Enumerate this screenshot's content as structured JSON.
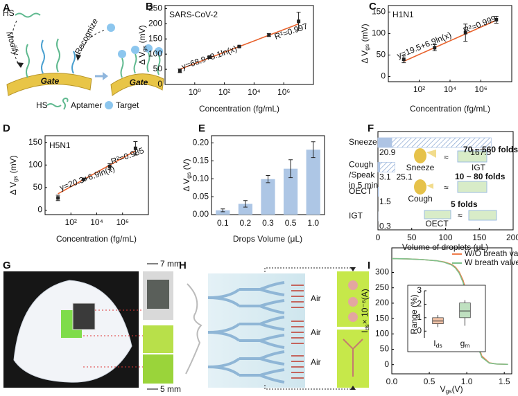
{
  "panel_labels": [
    "A",
    "B",
    "C",
    "D",
    "E",
    "F",
    "G",
    "H",
    "I"
  ],
  "panel_a": {
    "hs_top": "HS",
    "modify": "Modify",
    "recognize": "Recognize",
    "gate_left": "Gate",
    "gate_right": "Gate",
    "legend_hs": "HS",
    "legend_aptamer": "Aptamer",
    "legend_target": "Target"
  },
  "panel_g": {
    "scale_top": "7 mm",
    "scale_bottom": "5 mm"
  },
  "panel_h": {
    "air": [
      "Air",
      "Air",
      "Air"
    ]
  },
  "chart_data": [
    {
      "type": "scatter",
      "title": "SARS-CoV-2",
      "annotation": "y=68.9+8.1ln(x)",
      "r_squared": "R²=0.997",
      "x_label": "Concentration (fg/mL)",
      "y_label": {
        "text": "Δ V",
        "sub": "gs",
        "unit": " (mV)"
      },
      "x": [
        0.1,
        10,
        1000,
        100000,
        10000000
      ],
      "series": [
        {
          "color": "#222222",
          "values": [
            45,
            90,
            125,
            163,
            208
          ],
          "errors": [
            6,
            4,
            2,
            5,
            30
          ]
        }
      ],
      "fit": {
        "intercept": 68.9,
        "slope": 8.1,
        "color": "#e8622c"
      },
      "xscale": "log",
      "xlim": [
        0.01,
        100000000
      ],
      "xticks": [
        {
          "value": 1,
          "label": "10⁰"
        },
        {
          "value": 100,
          "label": "10²"
        },
        {
          "value": 10000,
          "label": "10⁴"
        },
        {
          "value": 1000000,
          "label": "10⁶"
        }
      ],
      "ylim": [
        0,
        260
      ],
      "yticks": [
        0,
        50,
        100,
        150,
        200,
        250
      ]
    },
    {
      "type": "scatter",
      "title": "H1N1",
      "annotation": "y=19.5+6.9ln(x)",
      "r_squared": "R²=0.999",
      "x_label": "Concentration (fg/mL)",
      "y_label": {
        "text": "Δ V",
        "sub": "gs",
        "unit": " (mV)"
      },
      "x": [
        10,
        1000,
        100000,
        10000000
      ],
      "series": [
        {
          "color": "#222222",
          "values": [
            40,
            67,
            102,
            132
          ],
          "errors": [
            8,
            7,
            20,
            8
          ]
        }
      ],
      "fit": {
        "intercept": 19.5,
        "slope": 6.9,
        "color": "#e8622c"
      },
      "xscale": "log",
      "xlim": [
        1,
        100000000
      ],
      "xticks": [
        {
          "value": 100,
          "label": "10²"
        },
        {
          "value": 10000,
          "label": "10⁴"
        },
        {
          "value": 1000000,
          "label": "10⁶"
        }
      ],
      "ylim": [
        -12,
        165
      ],
      "yticks": [
        0,
        50,
        100,
        150
      ]
    },
    {
      "type": "scatter",
      "title": "H5N1",
      "annotation": "y=20.3+6.9ln(x)",
      "r_squared": "R²=0.985",
      "x_label": "Concentration (fg/mL)",
      "y_label": {
        "text": "Δ V",
        "sub": "gs",
        "unit": " (mV)"
      },
      "x": [
        10,
        1000,
        100000,
        10000000
      ],
      "series": [
        {
          "color": "#222222",
          "values": [
            27,
            68,
            97,
            137
          ],
          "errors": [
            6,
            3,
            6,
            15
          ]
        }
      ],
      "fit": {
        "intercept": 20.3,
        "slope": 6.9,
        "color": "#e8622c"
      },
      "xscale": "log",
      "xlim": [
        1,
        100000000
      ],
      "xticks": [
        {
          "value": 100,
          "label": "10²"
        },
        {
          "value": 10000,
          "label": "10⁴"
        },
        {
          "value": 1000000,
          "label": "10⁶"
        }
      ],
      "ylim": [
        -10,
        165
      ],
      "yticks": [
        0,
        50,
        100,
        150
      ]
    },
    {
      "type": "bar",
      "x_label": "Drops Volume (μL)",
      "y_label": {
        "text": "Δ V",
        "sub": "gs",
        "unit": " (V)"
      },
      "categories": [
        "0.1",
        "0.2",
        "0.3",
        "0.5",
        "1.0"
      ],
      "values": [
        0.012,
        0.03,
        0.099,
        0.128,
        0.181
      ],
      "errors": [
        0.004,
        0.009,
        0.01,
        0.025,
        0.022
      ],
      "color": "#adc6e5",
      "ylim": [
        0,
        0.22
      ],
      "yticks": [
        {
          "value": 0,
          "label": "0.00"
        },
        {
          "value": 0.05,
          "label": "0.05"
        },
        {
          "value": 0.1,
          "label": "0.10"
        },
        {
          "value": 0.15,
          "label": "0.15"
        },
        {
          "value": 0.2,
          "label": "0.20"
        }
      ]
    },
    {
      "type": "hbar",
      "x_label": "Volume of droplets (μL)",
      "categories": [
        [
          "Sneeze"
        ],
        [
          "Cough",
          "/Speak",
          "in 5 min"
        ],
        [
          "OECT"
        ],
        [
          "IGT"
        ]
      ],
      "series": [
        {
          "color": "#aec4e4",
          "values": [
            20.9,
            3.1,
            1.5,
            0.3
          ]
        },
        {
          "color": "#aec4e4",
          "hatch": true,
          "values": [
            167.5,
            25.1,
            null,
            null
          ]
        }
      ],
      "annotations": [
        {
          "text": "70 ~ 560 folds",
          "color": "#e8a23a"
        },
        {
          "text": "10 ~ 80 folds",
          "color": "#d9b23a"
        },
        {
          "text": "5 folds",
          "color": "#7aa7d8"
        }
      ],
      "icon_labels": [
        "Sneeze",
        "IGT",
        "Cough",
        "OECT"
      ],
      "xlim": [
        0,
        200
      ],
      "xticks": [
        0,
        50,
        100,
        150,
        200
      ]
    },
    {
      "type": "line",
      "x_label": {
        "text": "V",
        "sub": "gs",
        "unit": "(V)"
      },
      "y_label": {
        "text": "I",
        "sub": "ds",
        "unit": "× 10⁻⁶(A)"
      },
      "x": [
        0,
        0.2,
        0.4,
        0.6,
        0.7,
        0.8,
        0.85,
        0.9,
        0.95,
        1.0,
        1.05,
        1.1,
        1.15,
        1.2,
        1.3,
        1.4,
        1.55
      ],
      "series": [
        {
          "name": "W/O breath valve",
          "color": "#f07c4a",
          "values": [
            345,
            344,
            342,
            338,
            334,
            326,
            317,
            301,
            275,
            232,
            178,
            118,
            66,
            28,
            6,
            2,
            1
          ]
        },
        {
          "name": "W breath valve",
          "color": "#7cc08a",
          "values": [
            345,
            344,
            342,
            338,
            333,
            324,
            314,
            297,
            268,
            222,
            165,
            106,
            57,
            24,
            5,
            2,
            1
          ]
        }
      ],
      "legend": "upper right",
      "xlim": [
        0,
        1.6
      ],
      "xticks": [
        {
          "value": 0,
          "label": "0.0"
        },
        {
          "value": 0.5,
          "label": "0.5"
        },
        {
          "value": 1,
          "label": "1.0"
        },
        {
          "value": 1.5,
          "label": "1.5"
        }
      ],
      "ylim": [
        -30,
        380
      ],
      "yticks": [
        0,
        50,
        100,
        150,
        200,
        250,
        300
      ]
    },
    {
      "type": "box",
      "y_label": "Range (%)",
      "categories": [
        {
          "text": "I",
          "sub": "ds"
        },
        {
          "text": "g",
          "sub": "m"
        }
      ],
      "boxes": [
        {
          "color": "#f3c4a8",
          "min": 0.3,
          "q1": 0.55,
          "median": 0.75,
          "q3": 1.0,
          "max": 1.2
        },
        {
          "color": "#bfe0c0",
          "min": 0.4,
          "q1": 1.0,
          "median": 1.5,
          "q3": 2.1,
          "max": 2.3
        }
      ],
      "ylim": [
        -0.5,
        3
      ],
      "yticks": [
        0,
        1,
        2,
        3
      ]
    }
  ]
}
